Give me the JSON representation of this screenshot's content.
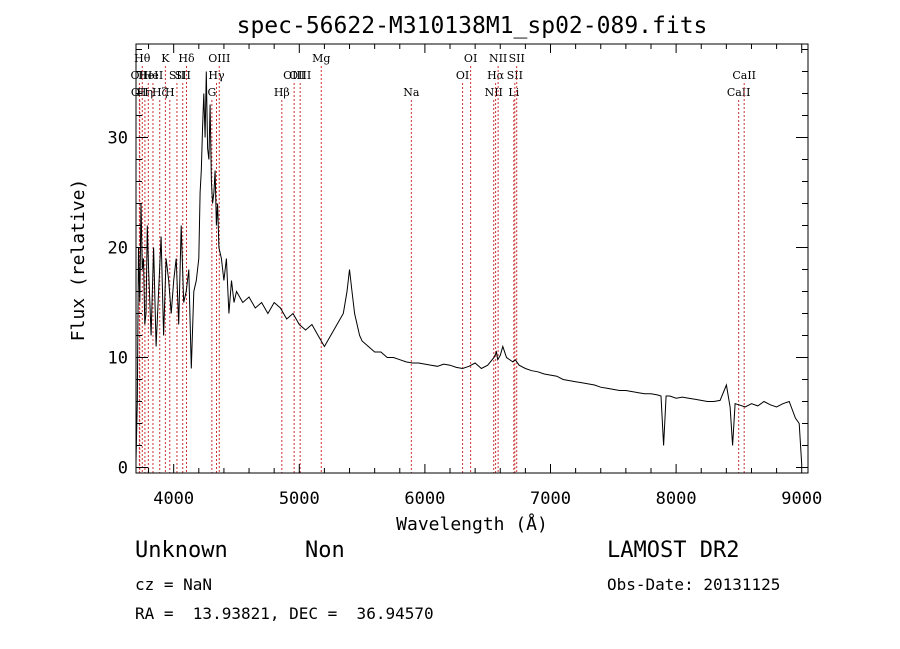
{
  "chart_data": {
    "type": "line",
    "title": "spec-56622-M310138M1_sp02-089.fits",
    "xlabel": "Wavelength (Å)",
    "ylabel": "Flux (relative)",
    "xlim": [
      3700,
      9050
    ],
    "ylim": [
      -0.5,
      38.5
    ],
    "xticks": [
      4000,
      5000,
      6000,
      7000,
      8000,
      9000
    ],
    "xtick_labels": [
      "4000",
      "5000",
      "6000",
      "7000",
      "8000",
      "9000"
    ],
    "yticks": [
      0,
      10,
      20,
      30
    ],
    "ytick_labels": [
      "0",
      "10",
      "20",
      "30"
    ],
    "grid": false,
    "series": [
      {
        "x": [
          3700,
          3710,
          3720,
          3730,
          3740,
          3750,
          3760,
          3770,
          3780,
          3790,
          3800,
          3820,
          3840,
          3860,
          3880,
          3900,
          3920,
          3940,
          3960,
          3980,
          4000,
          4020,
          4040,
          4060,
          4080,
          4100,
          4120,
          4140,
          4160,
          4180,
          4200,
          4210,
          4220,
          4230,
          4240,
          4250,
          4260,
          4270,
          4280,
          4290,
          4300,
          4310,
          4320,
          4330,
          4340,
          4350,
          4360,
          4380,
          4400,
          4420,
          4440,
          4460,
          4480,
          4500,
          4550,
          4600,
          4650,
          4700,
          4750,
          4800,
          4850,
          4900,
          4950,
          5000,
          5050,
          5100,
          5150,
          5200,
          5250,
          5300,
          5350,
          5380,
          5400,
          5420,
          5440,
          5460,
          5480,
          5500,
          5550,
          5600,
          5650,
          5700,
          5750,
          5800,
          5850,
          5900,
          5950,
          6000,
          6050,
          6100,
          6150,
          6200,
          6250,
          6300,
          6350,
          6400,
          6450,
          6500,
          6550,
          6570,
          6580,
          6600,
          6620,
          6650,
          6700,
          6720,
          6750,
          6800,
          6850,
          6900,
          6950,
          7000,
          7050,
          7100,
          7150,
          7200,
          7250,
          7300,
          7350,
          7400,
          7450,
          7500,
          7550,
          7600,
          7650,
          7700,
          7750,
          7800,
          7850,
          7880,
          7900,
          7920,
          7950,
          8000,
          8050,
          8100,
          8150,
          8200,
          8250,
          8300,
          8350,
          8400,
          8430,
          8450,
          8470,
          8500,
          8550,
          8600,
          8650,
          8700,
          8750,
          8800,
          8850,
          8900,
          8950,
          8980,
          9000
        ],
        "y": [
          0.5,
          6,
          20,
          15,
          24,
          18,
          19,
          13,
          14,
          22,
          18,
          12,
          20,
          11,
          16,
          21,
          12,
          19,
          17,
          14,
          17,
          19,
          13,
          22,
          15,
          16,
          18,
          9,
          16,
          17,
          19,
          25,
          27,
          31,
          34,
          30,
          36,
          29,
          28,
          33,
          26,
          24,
          25,
          27,
          22,
          24,
          20,
          19,
          17,
          19,
          14,
          17,
          15,
          16,
          15,
          15.5,
          14.5,
          15,
          14,
          15,
          14.5,
          13.5,
          14,
          13,
          12.5,
          13,
          12,
          11,
          12,
          13,
          14,
          16,
          18,
          16,
          14,
          13,
          12,
          11.5,
          11,
          10.5,
          10.5,
          10,
          10,
          9.8,
          9.6,
          9.5,
          9.5,
          9.4,
          9.3,
          9.2,
          9.4,
          9.3,
          9.1,
          9.0,
          9.2,
          9.5,
          9.0,
          9.3,
          10.0,
          10.5,
          9.8,
          10.2,
          11.0,
          10.0,
          9.6,
          9.8,
          9.3,
          9.0,
          8.8,
          8.7,
          8.5,
          8.4,
          8.3,
          8.0,
          7.9,
          7.8,
          7.7,
          7.6,
          7.5,
          7.3,
          7.2,
          7.1,
          7.0,
          7.0,
          6.9,
          6.8,
          6.7,
          6.7,
          6.6,
          6.5,
          2.0,
          6.5,
          6.5,
          6.3,
          6.4,
          6.3,
          6.2,
          6.1,
          6.0,
          6.0,
          6.1,
          7.5,
          5.5,
          2.0,
          5.8,
          5.7,
          5.5,
          5.8,
          5.6,
          6.0,
          5.7,
          5.5,
          5.8,
          6.0,
          4.5,
          4.0,
          0.3
        ]
      }
    ],
    "line_markers": [
      {
        "x": 3727,
        "label": "OII",
        "row": 2
      },
      {
        "x": 3730,
        "label": "OII",
        "row": 3
      },
      {
        "x": 3750,
        "label": "Hθ",
        "row": 1
      },
      {
        "x": 3771,
        "label": "Hη",
        "row": 3
      },
      {
        "x": 3798,
        "label": "HeI",
        "row": 2
      },
      {
        "x": 3835,
        "label": "HeI",
        "row": 2
      },
      {
        "x": 3889,
        "label": "Hζ",
        "row": 3
      },
      {
        "x": 3934,
        "label": "K",
        "row": 1
      },
      {
        "x": 3969,
        "label": "H",
        "row": 3
      },
      {
        "x": 4026,
        "label": "SII",
        "row": 2
      },
      {
        "x": 4072,
        "label": "SII",
        "row": 2
      },
      {
        "x": 4102,
        "label": "Hδ",
        "row": 1
      },
      {
        "x": 4304,
        "label": "G",
        "row": 3
      },
      {
        "x": 4341,
        "label": "Hγ",
        "row": 2
      },
      {
        "x": 4363,
        "label": "OIII",
        "row": 1
      },
      {
        "x": 4861,
        "label": "Hβ",
        "row": 3
      },
      {
        "x": 4959,
        "label": "OIII",
        "row": 2
      },
      {
        "x": 5007,
        "label": "OIII",
        "row": 2
      },
      {
        "x": 5175,
        "label": "Mg",
        "row": 1
      },
      {
        "x": 5892,
        "label": "Na",
        "row": 3
      },
      {
        "x": 6300,
        "label": "OI",
        "row": 2
      },
      {
        "x": 6364,
        "label": "OI",
        "row": 1
      },
      {
        "x": 6548,
        "label": "NII",
        "row": 3
      },
      {
        "x": 6563,
        "label": "Hα",
        "row": 2
      },
      {
        "x": 6583,
        "label": "NII",
        "row": 1
      },
      {
        "x": 6708,
        "label": "Li",
        "row": 3
      },
      {
        "x": 6716,
        "label": "SII",
        "row": 2
      },
      {
        "x": 6731,
        "label": "SII",
        "row": 1
      },
      {
        "x": 8498,
        "label": "CaII",
        "row": 3
      },
      {
        "x": 8542,
        "label": "CaII",
        "row": 2
      }
    ]
  },
  "footer": {
    "classification": "Unknown",
    "subclass": "Non",
    "survey": "LAMOST DR2",
    "redshift": "cz = NaN",
    "obs_date": "Obs-Date: 20131125",
    "coordinates": "RA =  13.93821, DEC =  36.94570"
  }
}
